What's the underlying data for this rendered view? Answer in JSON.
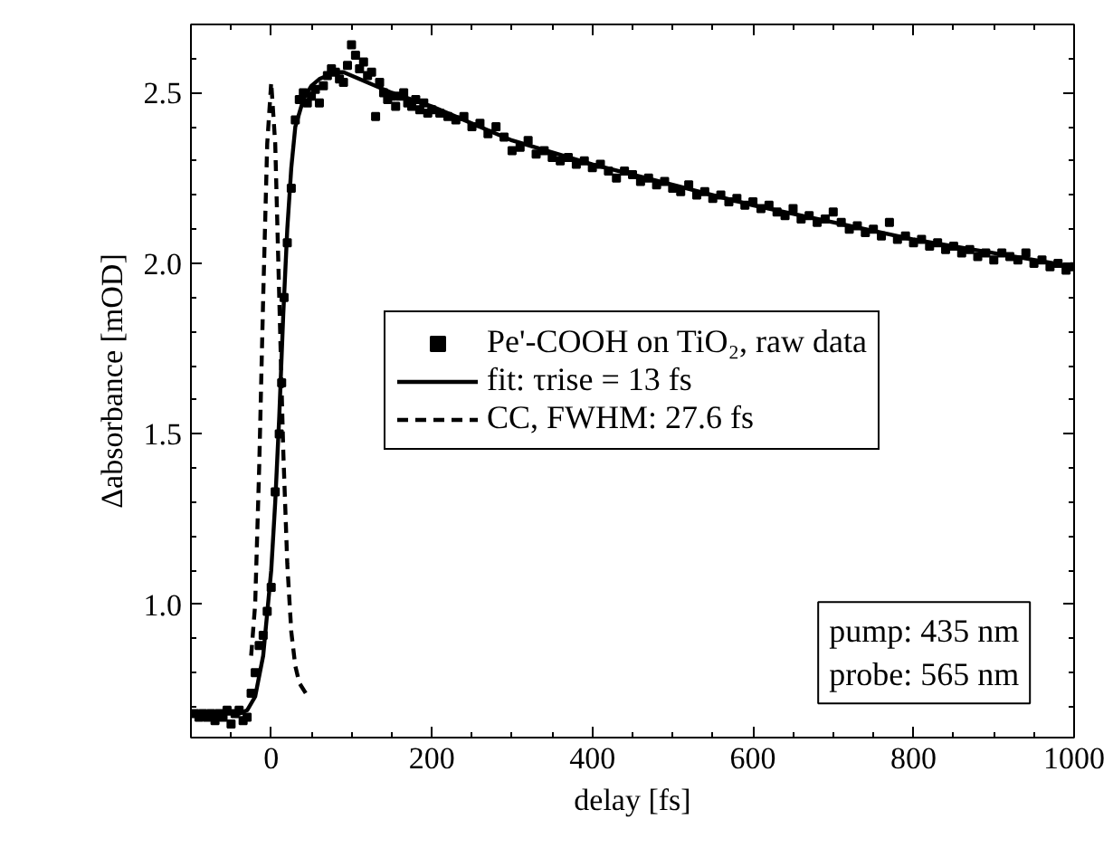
{
  "chart_data": {
    "type": "scatter",
    "xlabel": "delay [fs]",
    "ylabel": "Δabsorbance [mOD]",
    "xlim": [
      -100,
      1000
    ],
    "ylim": [
      0.61,
      2.7
    ],
    "xticks": [
      0,
      200,
      400,
      600,
      800,
      1000
    ],
    "yticks": [
      {
        "value": 1.0,
        "label": "1.0"
      },
      1.5,
      {
        "value": 2.0,
        "label": "2.0"
      },
      2.5
    ],
    "grid": false,
    "legend": "center",
    "annotations": [
      "pump: 435 nm\nprobe: 565 nm"
    ],
    "series": [
      {
        "name": "Pe'-COOH on TiO₂, raw data",
        "marker": "square",
        "color": "#000000",
        "x": [
          -95,
          -90,
          -85,
          -80,
          -75,
          -70,
          -65,
          -60,
          -55,
          -50,
          -45,
          -40,
          -35,
          -30,
          -25,
          -20,
          -15,
          -10,
          -5,
          0,
          5,
          10,
          13,
          16,
          20,
          25,
          30,
          35,
          40,
          45,
          50,
          55,
          60,
          65,
          70,
          75,
          80,
          85,
          90,
          95,
          100,
          105,
          110,
          115,
          120,
          125,
          130,
          135,
          140,
          145,
          150,
          155,
          160,
          165,
          170,
          175,
          180,
          185,
          190,
          195,
          200,
          210,
          220,
          230,
          240,
          250,
          260,
          270,
          280,
          290,
          300,
          310,
          320,
          330,
          340,
          350,
          360,
          370,
          380,
          390,
          400,
          410,
          420,
          430,
          440,
          450,
          460,
          470,
          480,
          490,
          500,
          510,
          520,
          530,
          540,
          550,
          560,
          570,
          580,
          590,
          600,
          610,
          620,
          630,
          640,
          650,
          660,
          670,
          680,
          690,
          700,
          710,
          720,
          730,
          740,
          750,
          760,
          770,
          780,
          790,
          800,
          810,
          820,
          830,
          840,
          850,
          860,
          870,
          880,
          890,
          900,
          910,
          920,
          930,
          940,
          950,
          960,
          970,
          980,
          990,
          1000
        ],
        "values": [
          0.68,
          0.67,
          0.68,
          0.67,
          0.68,
          0.66,
          0.68,
          0.67,
          0.69,
          0.65,
          0.68,
          0.69,
          0.66,
          0.67,
          0.74,
          0.8,
          0.88,
          0.91,
          0.98,
          1.05,
          1.33,
          1.5,
          1.65,
          1.9,
          2.06,
          2.22,
          2.42,
          2.48,
          2.5,
          2.47,
          2.49,
          2.51,
          2.47,
          2.52,
          2.55,
          2.57,
          2.56,
          2.54,
          2.53,
          2.58,
          2.64,
          2.61,
          2.57,
          2.59,
          2.55,
          2.56,
          2.43,
          2.53,
          2.5,
          2.48,
          2.49,
          2.46,
          2.49,
          2.5,
          2.47,
          2.46,
          2.48,
          2.45,
          2.47,
          2.44,
          2.45,
          2.44,
          2.43,
          2.42,
          2.43,
          2.4,
          2.41,
          2.38,
          2.4,
          2.37,
          2.33,
          2.34,
          2.36,
          2.32,
          2.33,
          2.31,
          2.3,
          2.31,
          2.29,
          2.3,
          2.28,
          2.29,
          2.27,
          2.25,
          2.27,
          2.26,
          2.24,
          2.25,
          2.23,
          2.24,
          2.22,
          2.21,
          2.23,
          2.2,
          2.21,
          2.19,
          2.2,
          2.18,
          2.19,
          2.17,
          2.18,
          2.16,
          2.17,
          2.15,
          2.14,
          2.16,
          2.13,
          2.14,
          2.12,
          2.13,
          2.15,
          2.12,
          2.1,
          2.11,
          2.09,
          2.1,
          2.08,
          2.12,
          2.07,
          2.08,
          2.06,
          2.07,
          2.05,
          2.06,
          2.04,
          2.05,
          2.03,
          2.04,
          2.02,
          2.03,
          2.01,
          2.03,
          2.02,
          2.01,
          2.03,
          2.0,
          2.01,
          1.99,
          2.0,
          1.98,
          1.99
        ]
      },
      {
        "name": "fit: τrise = 13 fs",
        "type": "line",
        "line_style": "solid",
        "color": "#000000",
        "x": [
          -100,
          -40,
          -30,
          -20,
          -10,
          0,
          5,
          10,
          15,
          20,
          25,
          30,
          40,
          50,
          60,
          80,
          90,
          150,
          200,
          300,
          400,
          500,
          600,
          700,
          800,
          900,
          1000
        ],
        "values": [
          0.68,
          0.68,
          0.69,
          0.73,
          0.85,
          1.1,
          1.3,
          1.55,
          1.85,
          2.1,
          2.28,
          2.4,
          2.48,
          2.52,
          2.54,
          2.56,
          2.56,
          2.5,
          2.46,
          2.36,
          2.29,
          2.23,
          2.17,
          2.12,
          2.07,
          2.03,
          1.99
        ]
      },
      {
        "name": "CC, FWHM: 27.6 fs",
        "type": "line",
        "line_style": "dashed",
        "color": "#000000",
        "x": [
          -25,
          -20,
          -15,
          -10,
          -5,
          0,
          5,
          10,
          15,
          20,
          25,
          30,
          35,
          43
        ],
        "values": [
          0.85,
          1.0,
          1.4,
          1.9,
          2.35,
          2.53,
          2.35,
          1.9,
          1.45,
          1.12,
          0.92,
          0.82,
          0.77,
          0.74
        ]
      }
    ]
  }
}
